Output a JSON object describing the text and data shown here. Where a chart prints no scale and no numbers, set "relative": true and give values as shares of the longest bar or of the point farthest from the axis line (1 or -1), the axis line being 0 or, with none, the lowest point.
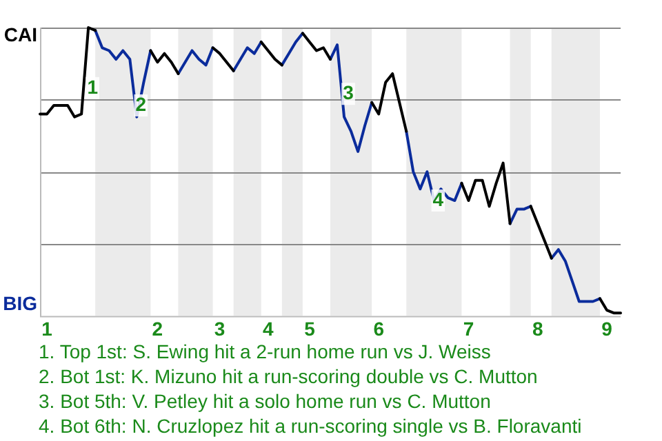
{
  "chart_data": {
    "type": "line",
    "relative": true,
    "marker": "none",
    "line_style": "solid",
    "legend": false,
    "grid": "y",
    "categories": [
      null,
      "1",
      null,
      null,
      null,
      null,
      null,
      null,
      null,
      null,
      null,
      null,
      null,
      null,
      null,
      null,
      null,
      "2",
      null,
      null,
      null,
      null,
      null,
      null,
      null,
      null,
      "3",
      null,
      null,
      null,
      null,
      null,
      null,
      "4",
      null,
      null,
      null,
      null,
      null,
      "5",
      null,
      null,
      null,
      null,
      null,
      null,
      null,
      null,
      null,
      "6",
      null,
      null,
      null,
      null,
      null,
      null,
      null,
      null,
      null,
      null,
      null,
      null,
      "7",
      null,
      null,
      null,
      null,
      null,
      null,
      null,
      null,
      null,
      "8",
      null,
      null,
      null,
      null,
      null,
      null,
      null,
      null,
      null,
      "9",
      null,
      null
    ],
    "series": [
      {
        "color": "#000000",
        "values": [
          0.7,
          0.7,
          0.73,
          0.73,
          0.73,
          0.69,
          0.7,
          1,
          0.99,
          null,
          null,
          null,
          null,
          null,
          null,
          null,
          0.92,
          0.88,
          0.91,
          0.88,
          0.84,
          null,
          null,
          null,
          null,
          0.93,
          0.91,
          0.88,
          0.85,
          null,
          null,
          null,
          0.95,
          0.92,
          0.89,
          0.87,
          null,
          null,
          0.98,
          0.95,
          0.92,
          0.93,
          0.89,
          null,
          null,
          null,
          null,
          null,
          0.74,
          0.7,
          0.81,
          0.84,
          0.74,
          0.64,
          null,
          null,
          null,
          null,
          null,
          null,
          null,
          0.46,
          0.4,
          0.47,
          0.47,
          0.38,
          0.46,
          0.53,
          0.32,
          null,
          null,
          0.38,
          0.32,
          0.26,
          0.2,
          null,
          null,
          null,
          null,
          null,
          null,
          0.06,
          0.02,
          0.01,
          0.01
        ]
      },
      {
        "color": "#0b2c9c",
        "values": [
          null,
          null,
          null,
          null,
          null,
          null,
          null,
          null,
          0.99,
          0.93,
          0.92,
          0.89,
          0.92,
          0.89,
          0.69,
          0.81,
          0.92,
          null,
          null,
          null,
          0.84,
          0.88,
          0.92,
          0.89,
          0.87,
          0.93,
          null,
          null,
          0.85,
          0.89,
          0.93,
          0.91,
          0.95,
          null,
          null,
          0.87,
          0.91,
          0.95,
          0.98,
          null,
          null,
          null,
          0.89,
          0.94,
          0.69,
          0.64,
          0.57,
          0.66,
          0.74,
          null,
          null,
          null,
          null,
          0.64,
          0.5,
          0.44,
          0.5,
          0.4,
          0.44,
          0.41,
          0.4,
          0.46,
          null,
          null,
          null,
          null,
          null,
          null,
          0.32,
          0.37,
          0.37,
          0.38,
          null,
          null,
          0.2,
          0.23,
          0.19,
          0.12,
          0.05,
          0.05,
          0.05,
          0.06,
          null,
          null,
          null
        ]
      }
    ],
    "annotations": [
      "CAI",
      "BIG",
      {
        "text": "1",
        "y": 0.79
      },
      {
        "text": "2",
        "y": 0.73
      },
      {
        "text": "3",
        "y": 0.77
      },
      {
        "text": "4",
        "y": 0.4
      },
      "1. Top 1st: S. Ewing hit a 2-run home run vs J. Weiss",
      "2. Bot 1st: K. Mizuno hit a run-scoring double vs C. Mutton",
      "3. Bot 5th: V. Petley hit a solo home run vs C. Mutton",
      "4. Bot 6th: N. Cruzlopez hit a run-scoring single vs B. Floravanti"
    ]
  }
}
